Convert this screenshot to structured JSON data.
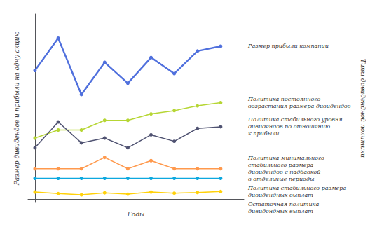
{
  "chart_data": {
    "type": "line",
    "x": [
      0,
      1,
      2,
      3,
      4,
      5,
      6,
      7,
      8
    ],
    "series": [
      {
        "name": "Размер прибыли компании",
        "values": [
          8.0,
          10.0,
          6.5,
          8.5,
          7.2,
          8.8,
          7.8,
          9.2,
          9.5
        ]
      },
      {
        "name": "Политика постоянного\nвозрастания размера дивидендов",
        "values": [
          3.8,
          4.3,
          4.3,
          4.9,
          4.9,
          5.3,
          5.5,
          5.8,
          6.0
        ]
      },
      {
        "name": "Политика стабильного уровня\nдивидендов по отношению\nк прибыли",
        "values": [
          3.2,
          4.8,
          3.5,
          3.8,
          3.2,
          4.0,
          3.6,
          4.4,
          4.5
        ]
      },
      {
        "name": "Политика минимального\nстабильного размера\nдивидендов с надбавкой\nв отдельные периоды",
        "values": [
          1.9,
          1.9,
          1.9,
          2.6,
          1.9,
          2.4,
          1.9,
          1.9,
          1.9
        ]
      },
      {
        "name": "Политика стабильного размера\nдивидендных выплат",
        "values": [
          1.3,
          1.3,
          1.3,
          1.3,
          1.3,
          1.3,
          1.3,
          1.3,
          1.3
        ]
      },
      {
        "name": "Остаточная политика\nдивидендных выплат",
        "values": [
          0.45,
          0.35,
          0.28,
          0.4,
          0.32,
          0.45,
          0.38,
          0.42,
          0.48
        ]
      }
    ],
    "xlabel": "Годы",
    "ylabel": "Размер дивидендов и прибыли на одну акцию",
    "annotations": [
      "Типы дивидендной политики"
    ],
    "xlim": [
      -0.3,
      9.0
    ],
    "ylim": [
      -0.2,
      11.5
    ],
    "xticks": [],
    "yticks": [],
    "tick_labels": false,
    "grid": false,
    "marker": "circle"
  }
}
